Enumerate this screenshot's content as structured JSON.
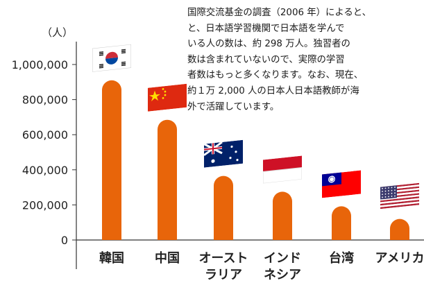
{
  "note": {
    "lines": [
      "国際交流基金の調査（2006 年）によると、",
      "と、日本語学習機関で日本語を学んで",
      "いる人の数は、約 298 万人。独習者の",
      "数は含まれていないので、実際の学習",
      "者数はもっと多くなります。なお、現在、",
      "約１万 2,000 人の日本人日本語教師が海",
      "外で活躍しています。"
    ]
  },
  "chart_data": {
    "type": "bar",
    "title": "",
    "xlabel": "",
    "ylabel": "（人）",
    "ylim": [
      0,
      1000000
    ],
    "yticks": [
      0,
      200000,
      400000,
      600000,
      800000,
      1000000
    ],
    "ytick_labels": [
      "0",
      "200,000",
      "400,000",
      "600,000",
      "800,000",
      "1,000,000"
    ],
    "categories": [
      [
        "韓国"
      ],
      [
        "中国"
      ],
      [
        "オースト",
        "ラリア"
      ],
      [
        "インド",
        "ネシア"
      ],
      [
        "台湾"
      ],
      [
        "アメリカ"
      ]
    ],
    "values": [
      910000,
      685000,
      365000,
      275000,
      192000,
      120000
    ],
    "flags": [
      "korea-flag-icon",
      "china-flag-icon",
      "australia-flag-icon",
      "indonesia-flag-icon",
      "taiwan-flag-icon",
      "usa-flag-icon"
    ],
    "colors": {
      "bar": "#e8650a",
      "axis": "#333333",
      "text": "#222222"
    }
  }
}
